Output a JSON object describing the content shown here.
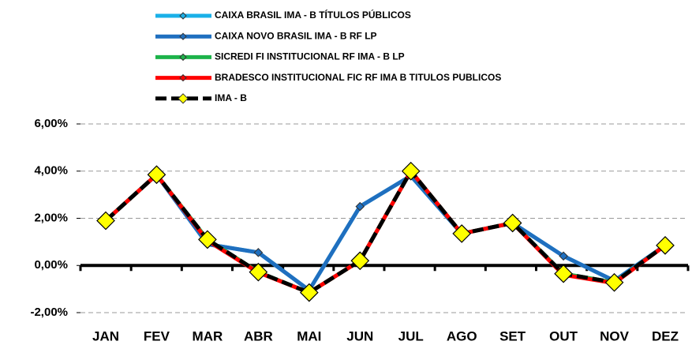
{
  "chart_data": {
    "type": "line",
    "categories": [
      "JAN",
      "FEV",
      "MAR",
      "ABR",
      "MAI",
      "JUN",
      "JUL",
      "AGO",
      "SET",
      "OUT",
      "NOV",
      "DEZ"
    ],
    "series": [
      {
        "name": "CAIXA BRASIL IMA - B TÍTULOS PÚBLICOS",
        "color": "#1ab0e8",
        "values": [
          1.9,
          3.85,
          0.9,
          0.55,
          -1.05,
          2.5,
          3.8,
          1.35,
          1.8,
          0.4,
          -0.65,
          0.85
        ]
      },
      {
        "name": "CAIXA NOVO BRASIL IMA - B RF LP",
        "color": "#1f6fbf",
        "values": [
          1.9,
          3.85,
          0.9,
          0.55,
          -1.05,
          2.5,
          3.8,
          1.35,
          1.8,
          0.4,
          -0.65,
          0.85
        ]
      },
      {
        "name": "SICREDI FI INSTITUCIONAL RF IMA - B LP",
        "color": "#1db34a",
        "values": [
          1.9,
          3.85,
          1.1,
          -0.28,
          -1.15,
          0.2,
          4.0,
          1.35,
          1.8,
          -0.35,
          -0.72,
          0.85
        ]
      },
      {
        "name": "BRADESCO INSTITUCIONAL FIC RF IMA B TITULOS PUBLICOS",
        "color": "#ff0000",
        "values": [
          1.9,
          3.85,
          1.05,
          -0.3,
          -1.15,
          0.2,
          4.0,
          1.35,
          1.8,
          -0.4,
          -0.75,
          0.85
        ]
      },
      {
        "name": "IMA - B",
        "color": "#000000",
        "values": [
          1.9,
          3.85,
          1.1,
          -0.28,
          -1.15,
          0.2,
          4.0,
          1.35,
          1.8,
          -0.35,
          -0.72,
          0.85
        ]
      }
    ],
    "ylim": [
      -2,
      6
    ],
    "yticks": [
      {
        "value": -2,
        "label": "-2,00%"
      },
      {
        "value": 0,
        "label": "0,00%"
      },
      {
        "value": 2,
        "label": "2,00%"
      },
      {
        "value": 4,
        "label": "4,00%"
      },
      {
        "value": 6,
        "label": "6,00%"
      }
    ],
    "grid": true
  }
}
